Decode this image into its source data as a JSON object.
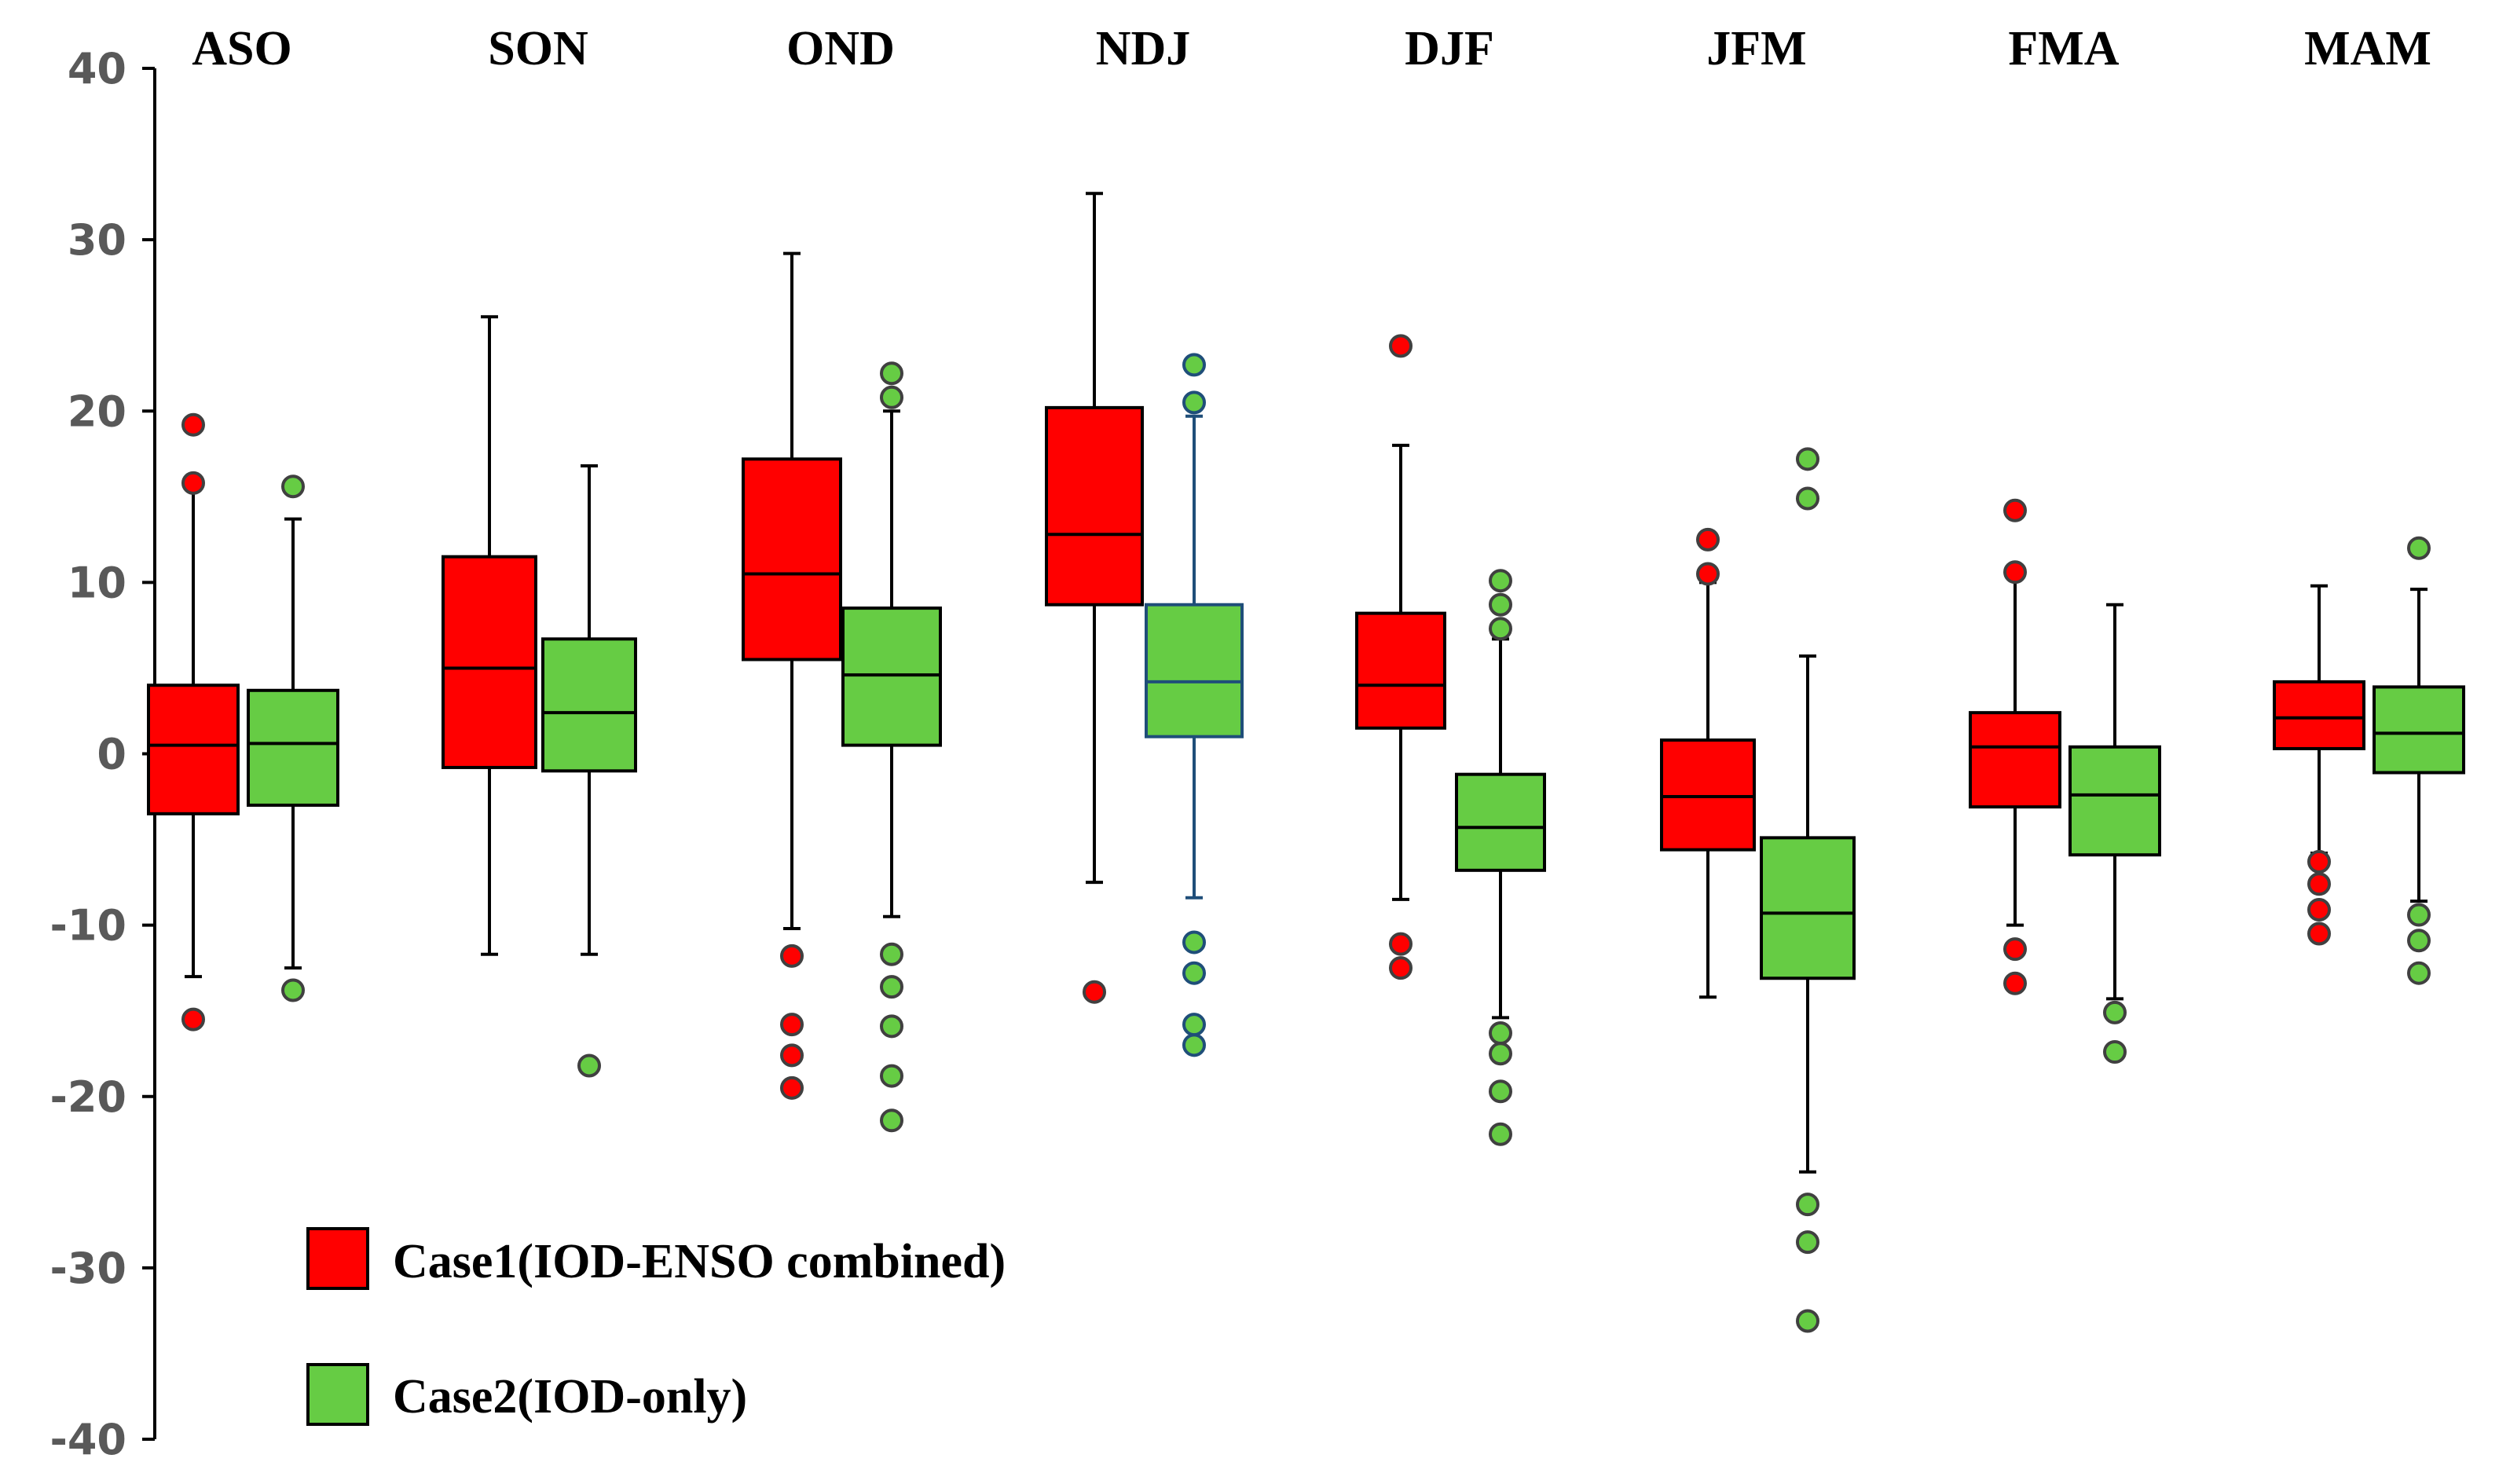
{
  "chart_data": {
    "type": "boxplot",
    "title": "",
    "xlabel": "",
    "ylabel": "",
    "ylim": [
      -40,
      40
    ],
    "yticks": [
      40,
      30,
      20,
      10,
      0,
      -10,
      -20,
      -30,
      -40
    ],
    "grid": false,
    "categories": [
      "ASO",
      "SON",
      "OND",
      "NDJ",
      "DJF",
      "JFM",
      "FMA",
      "MAM"
    ],
    "legend_position": "bottom-left",
    "series": [
      {
        "name": "Case1(IOD-ENSO combined)",
        "color": "#ff0000",
        "boxes": [
          {
            "whisker_low": -13,
            "q1": -3.5,
            "median": 0.5,
            "q3": 4,
            "whisker_high": 15.5,
            "outliers": [
              19.2,
              15.8,
              -15.5
            ]
          },
          {
            "whisker_low": -11.7,
            "q1": -0.8,
            "median": 5,
            "q3": 11.5,
            "whisker_high": 25.5,
            "outliers": []
          },
          {
            "whisker_low": -10.2,
            "q1": 5.5,
            "median": 10.5,
            "q3": 17.2,
            "whisker_high": 29.2,
            "outliers": [
              -11.8,
              -15.8,
              -17.6,
              -19.5
            ]
          },
          {
            "whisker_low": -7.5,
            "q1": 8.7,
            "median": 12.8,
            "q3": 20.2,
            "whisker_high": 32.7,
            "outliers": [
              -13.9
            ]
          },
          {
            "whisker_low": -8.5,
            "q1": 1.5,
            "median": 4,
            "q3": 8.2,
            "whisker_high": 18,
            "outliers": [
              23.8,
              -11.1,
              -12.5
            ]
          },
          {
            "whisker_low": -14.2,
            "q1": -5.6,
            "median": -2.5,
            "q3": 0.8,
            "whisker_high": 10,
            "outliers": [
              12.5,
              10.5
            ]
          },
          {
            "whisker_low": -10,
            "q1": -3.1,
            "median": 0.4,
            "q3": 2.4,
            "whisker_high": 10.5,
            "outliers": [
              14.2,
              10.6,
              -11.4,
              -13.4
            ]
          },
          {
            "whisker_low": -5.8,
            "q1": 0.3,
            "median": 2.1,
            "q3": 4.2,
            "whisker_high": 9.8,
            "outliers": [
              -6.3,
              -7.6,
              -9.1,
              -10.5
            ]
          }
        ]
      },
      {
        "name": "Case2(IOD-only)",
        "color": "#66cc44",
        "boxes": [
          {
            "whisker_low": -12.5,
            "q1": -3,
            "median": 0.6,
            "q3": 3.7,
            "whisker_high": 13.7,
            "outliers": [
              15.6,
              -13.8
            ]
          },
          {
            "whisker_low": -11.7,
            "q1": -1,
            "median": 2.4,
            "q3": 6.7,
            "whisker_high": 16.8,
            "outliers": [
              -18.2
            ]
          },
          {
            "whisker_low": -9.5,
            "q1": 0.5,
            "median": 4.6,
            "q3": 8.5,
            "whisker_high": 20,
            "outliers": [
              22.2,
              20.8,
              -11.7,
              -13.6,
              -15.9,
              -18.8,
              -21.4
            ]
          },
          {
            "whisker_low": -8.4,
            "q1": 1,
            "median": 4.2,
            "q3": 8.7,
            "whisker_high": 19.7,
            "outliers": [
              22.7,
              20.5,
              -11,
              -12.8,
              -15.8,
              -17
            ]
          },
          {
            "whisker_low": -15.4,
            "q1": -6.8,
            "median": -4.3,
            "q3": -1.2,
            "whisker_high": 6.7,
            "outliers": [
              10.1,
              8.7,
              7.3,
              -16.3,
              -17.5,
              -19.7,
              -22.2
            ]
          },
          {
            "whisker_low": -24.4,
            "q1": -13.1,
            "median": -9.3,
            "q3": -4.9,
            "whisker_high": 5.7,
            "outliers": [
              17.2,
              14.9,
              -26.3,
              -28.5,
              -33.1
            ]
          },
          {
            "whisker_low": -14.3,
            "q1": -5.9,
            "median": -2.4,
            "q3": 0.4,
            "whisker_high": 8.7,
            "outliers": [
              -15.1,
              -17.4
            ]
          },
          {
            "whisker_low": -8.6,
            "q1": -1.1,
            "median": 1.2,
            "q3": 3.9,
            "whisker_high": 9.6,
            "outliers": [
              12,
              -9.4,
              -10.9,
              -12.8
            ]
          }
        ]
      }
    ]
  },
  "colors": {
    "case1_fill": "#ff0000",
    "case2_fill": "#66cc44",
    "case2_ndj_border": "#1f4e79",
    "axis": "#000000",
    "outlier_border": "#404040"
  }
}
